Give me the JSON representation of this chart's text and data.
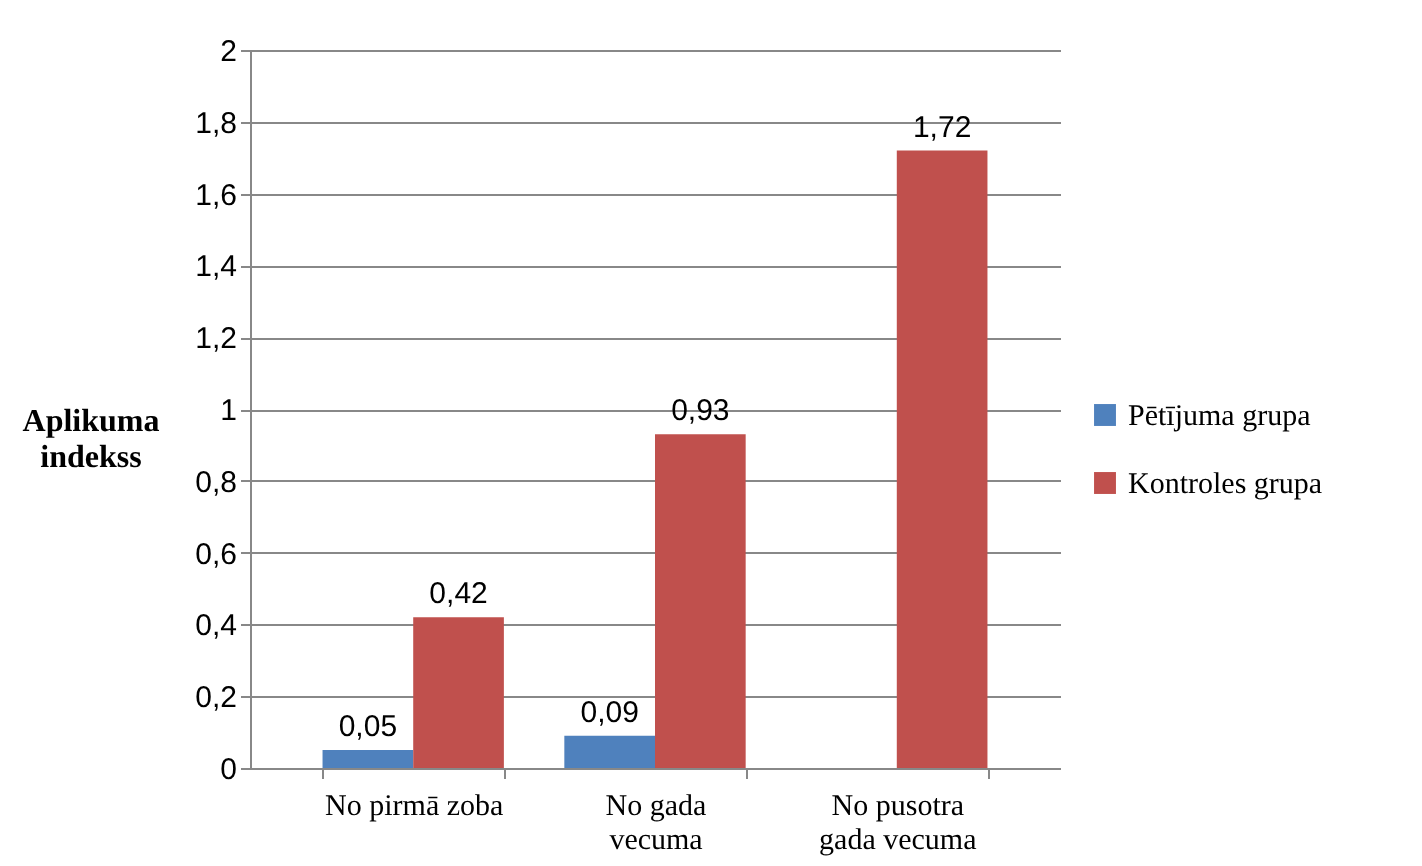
{
  "chart_data": {
    "type": "bar",
    "ylabel": "Aplikuma indekss",
    "categories": [
      "No pirmā zoba",
      "No gada vecuma",
      "No pusotra gada vecuma"
    ],
    "series": [
      {
        "name": "Pētījuma grupa",
        "color": "#4f81bd",
        "values": [
          0.05,
          0.09,
          null
        ],
        "value_labels": [
          "0,05",
          "0,09",
          null
        ]
      },
      {
        "name": "Kontroles grupa",
        "color": "#c0504d",
        "values": [
          0.42,
          0.93,
          1.72
        ],
        "value_labels": [
          "0,42",
          "0,93",
          "1,72"
        ]
      }
    ],
    "ylim": [
      0,
      2
    ],
    "yticks": [
      0,
      {
        "value": 0.2,
        "label": "0,2"
      },
      {
        "value": 0.4,
        "label": "0,4"
      },
      {
        "value": 0.6,
        "label": "0,6"
      },
      {
        "value": 0.8,
        "label": "0,8"
      },
      1,
      {
        "value": 1.2,
        "label": "1,2"
      },
      {
        "value": 1.4,
        "label": "1,4"
      },
      {
        "value": 1.6,
        "label": "1,6"
      },
      {
        "value": 1.8,
        "label": "1,8"
      },
      2
    ],
    "grid": "y",
    "legend": "right"
  }
}
